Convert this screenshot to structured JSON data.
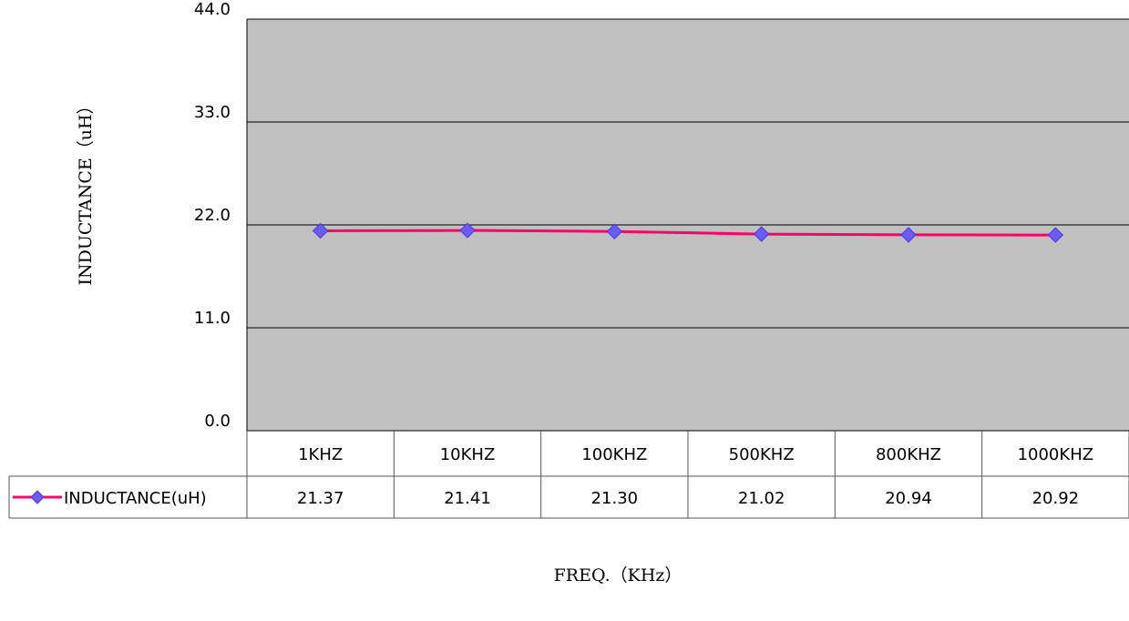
{
  "chart_data": {
    "type": "line",
    "categories": [
      "1KHZ",
      "10KHZ",
      "100KHZ",
      "500KHZ",
      "800KHZ",
      "1000KHZ"
    ],
    "series": [
      {
        "name": "INDUCTANCE(uH)",
        "values": [
          21.37,
          21.41,
          21.3,
          21.02,
          20.94,
          20.92
        ],
        "value_labels": [
          "21.37",
          "21.41",
          "21.30",
          "21.02",
          "20.94",
          "20.92"
        ]
      }
    ],
    "yticks": [
      0.0,
      11.0,
      22.0,
      33.0,
      44.0
    ],
    "ytick_labels": [
      "0.0",
      "11.0",
      "22.0",
      "33.0",
      "44.0"
    ],
    "ylim": [
      0,
      44
    ],
    "xlabel": "FREQ.（KHz）",
    "ylabel": "INDUCTANCE（uH）",
    "grid": true,
    "data_table": true,
    "colors": {
      "plot_bg": "#c0c0c0",
      "line": "#ff0066",
      "marker": "#6a5aff",
      "marker_edge": "#4a3acc",
      "gridline": "#000000"
    }
  }
}
